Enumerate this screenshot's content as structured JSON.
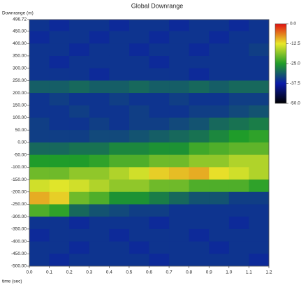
{
  "chart_data": {
    "type": "heatmap",
    "title": "Global Downrange",
    "y_label": "Downrange (m)",
    "x_label": "time (sec)",
    "xlim": [
      0,
      1.2
    ],
    "ylim": [
      -500,
      496.72
    ],
    "xticks": [
      {
        "value": 0,
        "label": "0.0"
      },
      0.1,
      0.2,
      0.3,
      0.4,
      0.5,
      0.6,
      0.7,
      0.8,
      0.9,
      {
        "value": 1,
        "label": "1.0"
      },
      1.1,
      1.2
    ],
    "yticks": [
      496.72,
      {
        "value": 450,
        "label": "450.00"
      },
      {
        "value": 400,
        "label": "400.00"
      },
      {
        "value": 350,
        "label": "350.00"
      },
      {
        "value": 300,
        "label": "300.00"
      },
      {
        "value": 250,
        "label": "250.00"
      },
      {
        "value": 200,
        "label": "200.00"
      },
      {
        "value": 150,
        "label": "150.00"
      },
      {
        "value": 100,
        "label": "100.00"
      },
      {
        "value": 50,
        "label": "50.00"
      },
      {
        "value": 0,
        "label": "0.00"
      },
      {
        "value": -50,
        "label": "-50.00"
      },
      {
        "value": -100,
        "label": "-100.00"
      },
      {
        "value": -150,
        "label": "-150.00"
      },
      {
        "value": -200,
        "label": "-200.00"
      },
      {
        "value": -250,
        "label": "-250.00"
      },
      {
        "value": -300,
        "label": "-300.00"
      },
      {
        "value": -350,
        "label": "-350.00"
      },
      {
        "value": -400,
        "label": "-400.00"
      },
      {
        "value": -450,
        "label": "-450.00"
      },
      {
        "value": -500,
        "label": "-500.00"
      }
    ],
    "x": [
      0.05,
      0.15,
      0.25,
      0.35,
      0.45,
      0.55,
      0.65,
      0.75,
      0.85,
      0.95,
      1.05,
      1.15
    ],
    "y": [
      475,
      425,
      375,
      325,
      275,
      225,
      175,
      125,
      75,
      25,
      -25,
      -75,
      -125,
      -175,
      -225,
      -275,
      -325,
      -375,
      -425,
      -475
    ],
    "z": [
      [
        -35,
        -36,
        -35,
        -35,
        -36,
        -35,
        -35,
        -36,
        -35,
        -35,
        -36,
        -35
      ],
      [
        -36,
        -35,
        -35,
        -36,
        -35,
        -35,
        -36,
        -35,
        -35,
        -36,
        -35,
        -35
      ],
      [
        -35,
        -35,
        -36,
        -35,
        -35,
        -36,
        -35,
        -35,
        -36,
        -35,
        -35,
        -34
      ],
      [
        -35,
        -36,
        -35,
        -35,
        -35,
        -35,
        -36,
        -35,
        -35,
        -35,
        -35,
        -35
      ],
      [
        -35,
        -35,
        -35,
        -36,
        -35,
        -35,
        -35,
        -35,
        -36,
        -35,
        -35,
        -35
      ],
      [
        -31,
        -31,
        -30,
        -31,
        -31,
        -30,
        -31,
        -31,
        -30,
        -31,
        -30,
        -30
      ],
      [
        -35,
        -34,
        -35,
        -35,
        -34,
        -35,
        -35,
        -34,
        -35,
        -35,
        -34,
        -34
      ],
      [
        -35,
        -35,
        -34,
        -35,
        -35,
        -34,
        -35,
        -35,
        -34,
        -34,
        -33,
        -32
      ],
      [
        -34,
        -35,
        -35,
        -34,
        -35,
        -34,
        -34,
        -33,
        -32,
        -30,
        -29,
        -28
      ],
      [
        -34,
        -34,
        -34,
        -33,
        -33,
        -32,
        -31,
        -30,
        -29,
        -27,
        -25,
        -24
      ],
      [
        -30,
        -30,
        -29,
        -29,
        -27,
        -27,
        -26,
        -26,
        -23,
        -22,
        -21,
        -21
      ],
      [
        -25,
        -25,
        -25,
        -24,
        -22,
        -22,
        -20,
        -20,
        -18,
        -18,
        -16,
        -16
      ],
      [
        -20,
        -20,
        -18,
        -18,
        -16,
        -14,
        -11,
        -10,
        -9,
        -12,
        -14,
        -16
      ],
      [
        -14,
        -13,
        -14,
        -16,
        -18,
        -18,
        -20,
        -20,
        -22,
        -22,
        -22,
        -24
      ],
      [
        -9,
        -11,
        -20,
        -22,
        -26,
        -26,
        -28,
        -30,
        -32,
        -32,
        -34,
        -34
      ],
      [
        -22,
        -24,
        -30,
        -32,
        -33,
        -34,
        -34,
        -35,
        -35,
        -35,
        -35,
        -35
      ],
      [
        -35,
        -35,
        -36,
        -35,
        -35,
        -35,
        -36,
        -35,
        -35,
        -35,
        -36,
        -35
      ],
      [
        -36,
        -35,
        -35,
        -35,
        -36,
        -35,
        -35,
        -35,
        -36,
        -35,
        -35,
        -35
      ],
      [
        -35,
        -35,
        -36,
        -35,
        -35,
        -36,
        -35,
        -35,
        -35,
        -36,
        -35,
        -35
      ],
      [
        -35,
        -36,
        -35,
        -35,
        -35,
        -35,
        -36,
        -35,
        -35,
        -35,
        -35,
        -36
      ]
    ],
    "zlim": [
      -50,
      0
    ],
    "colormap": [
      "#000000",
      "#0a1aa8",
      "#1f9c2a",
      "#e8e82a",
      "#e01010"
    ],
    "colorbar_ticks": [
      {
        "value": 0,
        "label": "0.0"
      },
      -12.5,
      {
        "value": -25,
        "label": "-25.0"
      },
      -37.5,
      {
        "value": -50,
        "label": "-50.0"
      }
    ]
  }
}
